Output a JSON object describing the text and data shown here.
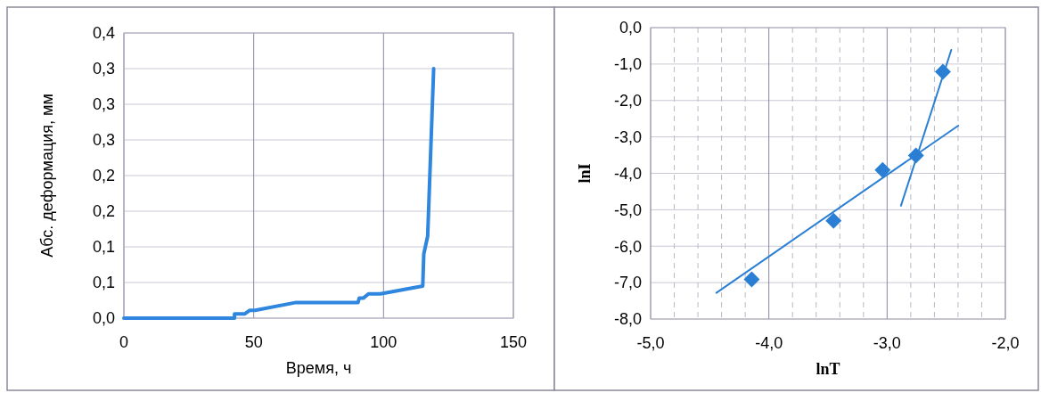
{
  "chart_data": [
    {
      "type": "line",
      "xlabel": "Время, ч",
      "ylabel": "Абс. деформация, мм",
      "xlim": [
        0,
        150
      ],
      "ylim": [
        0,
        0.4
      ],
      "xticks": [
        0,
        50,
        100,
        150
      ],
      "yticks": [
        {
          "value": 0,
          "label": "0,0"
        },
        {
          "value": 0.05,
          "label": "0,1"
        },
        {
          "value": 0.1,
          "label": "0,1"
        },
        {
          "value": 0.15,
          "label": "0,2"
        },
        {
          "value": 0.2,
          "label": "0,2"
        },
        {
          "value": 0.25,
          "label": "0,3"
        },
        {
          "value": 0.3,
          "label": "0,3"
        },
        {
          "value": 0.35,
          "label": "0,3"
        },
        {
          "value": 0.4,
          "label": "0,4"
        }
      ],
      "grid": true,
      "series": [
        {
          "color": "#2e86de",
          "x": [
            0,
            42.6,
            42.6,
            46.6,
            48.5,
            50.5,
            66.4,
            90.2,
            90.6,
            92.2,
            94.2,
            98.8,
            115.1,
            115.5,
            117,
            119.3
          ],
          "values": [
            0,
            0,
            0.006,
            0.006,
            0.011,
            0.011,
            0.022,
            0.022,
            0.028,
            0.028,
            0.034,
            0.034,
            0.045,
            0.09,
            0.115,
            0.35
          ]
        }
      ]
    },
    {
      "type": "scatter",
      "xlabel": "lnT",
      "ylabel": "lnI",
      "xlim": [
        -5,
        -2
      ],
      "ylim": [
        -8,
        0
      ],
      "xticks": [
        {
          "value": -5,
          "label": "-5,0"
        },
        {
          "value": -4.8,
          "label": null
        },
        {
          "value": -4.6,
          "label": null
        },
        {
          "value": -4.4,
          "label": null
        },
        {
          "value": -4.2,
          "label": null
        },
        {
          "value": -4,
          "label": "-4,0"
        },
        {
          "value": -3.8,
          "label": null
        },
        {
          "value": -3.6,
          "label": null
        },
        {
          "value": -3.4,
          "label": null
        },
        {
          "value": -3.2,
          "label": null
        },
        {
          "value": -3,
          "label": "-3,0"
        },
        {
          "value": -2.8,
          "label": null
        },
        {
          "value": -2.6,
          "label": null
        },
        {
          "value": -2.4,
          "label": null
        },
        {
          "value": -2.2,
          "label": null
        },
        {
          "value": -2,
          "label": "-2,0"
        }
      ],
      "yticks": [
        {
          "value": 0,
          "label": "0,0"
        },
        {
          "value": -1,
          "label": "-1,0"
        },
        {
          "value": -2,
          "label": "-2,0"
        },
        {
          "value": -3,
          "label": "-3,0"
        },
        {
          "value": -4,
          "label": "-4,0"
        },
        {
          "value": -5,
          "label": "-5,0"
        },
        {
          "value": -6,
          "label": "-6,0"
        },
        {
          "value": -7,
          "label": "-7,0"
        },
        {
          "value": -8,
          "label": "-8,0"
        }
      ],
      "grid": true,
      "series": [
        {
          "marker": "diamond",
          "color": "#2a7fd4",
          "x": [
            -4.145,
            -3.453,
            -3.038,
            -2.756,
            -2.528
          ],
          "values": [
            -6.91,
            -5.3,
            -3.91,
            -3.51,
            -1.21
          ]
        },
        {
          "type": "line",
          "color": "#2a7fd4",
          "x": [
            -4.444,
            -2.398
          ],
          "values": [
            -7.28,
            -2.69
          ]
        },
        {
          "type": "line",
          "color": "#2a7fd4",
          "x": [
            -2.883,
            -2.457
          ],
          "values": [
            -4.89,
            -0.61
          ]
        }
      ]
    }
  ]
}
